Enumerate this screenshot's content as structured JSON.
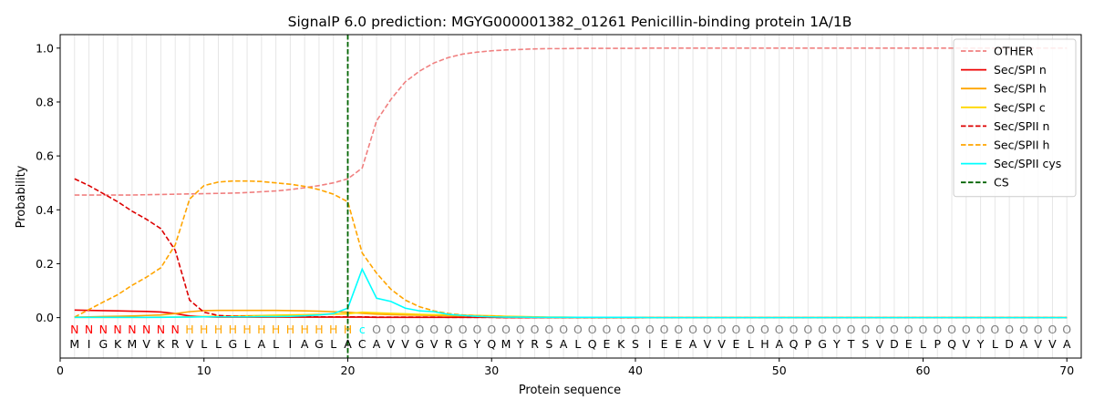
{
  "chart_data": {
    "type": "line",
    "title": "SignalP 6.0 prediction: MGYG000001382_01261 Penicillin-binding protein 1A/1B",
    "xlabel": "Protein sequence",
    "ylabel": "Probability",
    "xlim": [
      0,
      71
    ],
    "ylim": [
      -0.15,
      1.05
    ],
    "xticks": [
      0,
      10,
      20,
      30,
      40,
      50,
      60,
      70
    ],
    "yticks": [
      0.0,
      0.2,
      0.4,
      0.6,
      0.8,
      1.0
    ],
    "grid": "vertical lines at each residue",
    "legend_position": "top-right",
    "sequence": [
      "M",
      "I",
      "G",
      "K",
      "M",
      "V",
      "K",
      "R",
      "V",
      "L",
      "L",
      "G",
      "L",
      "A",
      "L",
      "I",
      "A",
      "G",
      "L",
      "A",
      "C",
      "A",
      "V",
      "V",
      "G",
      "V",
      "R",
      "G",
      "Y",
      "Q",
      "M",
      "Y",
      "R",
      "S",
      "A",
      "L",
      "Q",
      "E",
      "K",
      "S",
      "I",
      "E",
      "E",
      "A",
      "V",
      "V",
      "E",
      "L",
      "H",
      "A",
      "Q",
      "P",
      "G",
      "Y",
      "T",
      "S",
      "V",
      "D",
      "E",
      "L",
      "P",
      "Q",
      "V",
      "Y",
      "L",
      "D",
      "A",
      "V",
      "V",
      "A"
    ],
    "labels": [
      "N",
      "N",
      "N",
      "N",
      "N",
      "N",
      "N",
      "N",
      "H",
      "H",
      "H",
      "H",
      "H",
      "H",
      "H",
      "H",
      "H",
      "H",
      "H",
      "H",
      "c",
      "O",
      "O",
      "O",
      "O",
      "O",
      "O",
      "O",
      "O",
      "O",
      "O",
      "O",
      "O",
      "O",
      "O",
      "O",
      "O",
      "O",
      "O",
      "O",
      "O",
      "O",
      "O",
      "O",
      "O",
      "O",
      "O",
      "O",
      "O",
      "O",
      "O",
      "O",
      "O",
      "O",
      "O",
      "O",
      "O",
      "O",
      "O",
      "O",
      "O",
      "O",
      "O",
      "O",
      "O",
      "O",
      "O",
      "O",
      "O",
      "O"
    ],
    "label_colors": {
      "N": "#ff0000",
      "H": "#ffa500",
      "c": "#00ffff",
      "O": "#808080"
    },
    "cleavage_site": 20,
    "series": [
      {
        "name": "OTHER",
        "color": "#f08080",
        "style": "dashed",
        "values": [
          0.455,
          0.455,
          0.455,
          0.455,
          0.455,
          0.456,
          0.457,
          0.458,
          0.459,
          0.46,
          0.461,
          0.462,
          0.464,
          0.467,
          0.47,
          0.475,
          0.482,
          0.49,
          0.5,
          0.515,
          0.555,
          0.73,
          0.81,
          0.875,
          0.915,
          0.945,
          0.965,
          0.978,
          0.985,
          0.99,
          0.993,
          0.995,
          0.997,
          0.998,
          0.998,
          0.999,
          0.999,
          0.999,
          0.999,
          0.999,
          1.0,
          1.0,
          1.0,
          1.0,
          1.0,
          1.0,
          1.0,
          1.0,
          1.0,
          1.0,
          1.0,
          1.0,
          1.0,
          1.0,
          1.0,
          1.0,
          1.0,
          1.0,
          1.0,
          1.0,
          1.0,
          1.0,
          1.0,
          1.0,
          1.0,
          1.0,
          1.0,
          1.0,
          1.0,
          1.0
        ]
      },
      {
        "name": "Sec/SPI n",
        "color": "#ee0000",
        "style": "solid",
        "values": [
          0.028,
          0.027,
          0.026,
          0.025,
          0.024,
          0.023,
          0.021,
          0.015,
          0.006,
          0.003,
          0.002,
          0.002,
          0.002,
          0.002,
          0.002,
          0.002,
          0.002,
          0.002,
          0.002,
          0.002,
          0.002,
          0.001,
          0.001,
          0.001,
          0.001,
          0.001,
          0.001,
          0.001,
          0.001,
          0.001,
          0.0,
          0.0,
          0.0,
          0.0,
          0.0,
          0.0,
          0.0,
          0.0,
          0.0,
          0.0,
          0.0,
          0.0,
          0.0,
          0.0,
          0.0,
          0.0,
          0.0,
          0.0,
          0.0,
          0.0,
          0.0,
          0.0,
          0.0,
          0.0,
          0.0,
          0.0,
          0.0,
          0.0,
          0.0,
          0.0,
          0.0,
          0.0,
          0.0,
          0.0,
          0.0,
          0.0,
          0.0,
          0.0,
          0.0,
          0.0
        ]
      },
      {
        "name": "Sec/SPI h",
        "color": "#ffa500",
        "style": "solid",
        "values": [
          0.002,
          0.003,
          0.004,
          0.005,
          0.006,
          0.008,
          0.01,
          0.015,
          0.022,
          0.026,
          0.027,
          0.027,
          0.027,
          0.027,
          0.027,
          0.026,
          0.025,
          0.024,
          0.022,
          0.02,
          0.016,
          0.013,
          0.011,
          0.01,
          0.009,
          0.008,
          0.007,
          0.006,
          0.005,
          0.004,
          0.003,
          0.002,
          0.002,
          0.001,
          0.001,
          0.001,
          0.001,
          0.001,
          0.001,
          0.001,
          0.0,
          0.0,
          0.0,
          0.0,
          0.0,
          0.0,
          0.0,
          0.0,
          0.0,
          0.0,
          0.0,
          0.0,
          0.0,
          0.0,
          0.0,
          0.0,
          0.0,
          0.0,
          0.0,
          0.0,
          0.0,
          0.0,
          0.0,
          0.0,
          0.0,
          0.0,
          0.0,
          0.0,
          0.0,
          0.0
        ]
      },
      {
        "name": "Sec/SPI c",
        "color": "#ffd700",
        "style": "solid",
        "values": [
          0.001,
          0.001,
          0.001,
          0.001,
          0.001,
          0.001,
          0.002,
          0.002,
          0.003,
          0.004,
          0.005,
          0.006,
          0.007,
          0.008,
          0.009,
          0.01,
          0.011,
          0.012,
          0.013,
          0.014,
          0.02,
          0.018,
          0.016,
          0.014,
          0.012,
          0.011,
          0.01,
          0.009,
          0.008,
          0.007,
          0.005,
          0.004,
          0.003,
          0.002,
          0.002,
          0.001,
          0.001,
          0.001,
          0.001,
          0.001,
          0.0,
          0.0,
          0.0,
          0.0,
          0.0,
          0.0,
          0.0,
          0.0,
          0.0,
          0.0,
          0.0,
          0.0,
          0.0,
          0.0,
          0.0,
          0.0,
          0.0,
          0.0,
          0.0,
          0.0,
          0.0,
          0.0,
          0.0,
          0.0,
          0.0,
          0.0,
          0.0,
          0.0,
          0.0,
          0.0
        ]
      },
      {
        "name": "Sec/SPII n",
        "color": "#dd0000",
        "style": "dashed",
        "values": [
          0.515,
          0.49,
          0.46,
          0.43,
          0.395,
          0.365,
          0.33,
          0.25,
          0.065,
          0.02,
          0.008,
          0.005,
          0.004,
          0.003,
          0.003,
          0.003,
          0.003,
          0.003,
          0.003,
          0.003,
          0.003,
          0.002,
          0.002,
          0.002,
          0.002,
          0.002,
          0.001,
          0.001,
          0.001,
          0.001,
          0.0,
          0.0,
          0.0,
          0.0,
          0.0,
          0.0,
          0.0,
          0.0,
          0.0,
          0.0,
          0.0,
          0.0,
          0.0,
          0.0,
          0.0,
          0.0,
          0.0,
          0.0,
          0.0,
          0.0,
          0.0,
          0.0,
          0.0,
          0.0,
          0.0,
          0.0,
          0.0,
          0.0,
          0.0,
          0.0,
          0.0,
          0.0,
          0.0,
          0.0,
          0.0,
          0.0,
          0.0,
          0.0,
          0.0,
          0.0
        ]
      },
      {
        "name": "Sec/SPII h",
        "color": "#ffa500",
        "style": "dashed",
        "values": [
          0.002,
          0.03,
          0.058,
          0.085,
          0.12,
          0.15,
          0.185,
          0.27,
          0.44,
          0.49,
          0.503,
          0.507,
          0.507,
          0.505,
          0.5,
          0.495,
          0.487,
          0.475,
          0.458,
          0.43,
          0.24,
          0.165,
          0.105,
          0.065,
          0.04,
          0.025,
          0.015,
          0.01,
          0.007,
          0.005,
          0.003,
          0.002,
          0.002,
          0.001,
          0.001,
          0.001,
          0.001,
          0.001,
          0.001,
          0.001,
          0.0,
          0.0,
          0.0,
          0.0,
          0.0,
          0.0,
          0.0,
          0.0,
          0.0,
          0.0,
          0.0,
          0.0,
          0.0,
          0.0,
          0.0,
          0.0,
          0.0,
          0.0,
          0.0,
          0.0,
          0.0,
          0.0,
          0.0,
          0.0,
          0.0,
          0.0,
          0.0,
          0.0,
          0.0,
          0.0
        ]
      },
      {
        "name": "Sec/SPII cys",
        "color": "#00ffff",
        "style": "solid",
        "values": [
          0.001,
          0.001,
          0.001,
          0.001,
          0.001,
          0.001,
          0.001,
          0.002,
          0.002,
          0.003,
          0.003,
          0.003,
          0.003,
          0.004,
          0.004,
          0.005,
          0.007,
          0.01,
          0.015,
          0.035,
          0.18,
          0.072,
          0.06,
          0.035,
          0.025,
          0.022,
          0.012,
          0.008,
          0.005,
          0.003,
          0.002,
          0.002,
          0.001,
          0.001,
          0.001,
          0.001,
          0.001,
          0.001,
          0.001,
          0.001,
          0.0,
          0.0,
          0.0,
          0.0,
          0.0,
          0.0,
          0.0,
          0.0,
          0.0,
          0.0,
          0.0,
          0.0,
          0.0,
          0.0,
          0.0,
          0.0,
          0.0,
          0.0,
          0.0,
          0.0,
          0.0,
          0.0,
          0.0,
          0.0,
          0.0,
          0.0,
          0.0,
          0.0,
          0.0,
          0.0
        ]
      }
    ],
    "cs_legend": {
      "name": "CS",
      "color": "#006400",
      "style": "dashed"
    }
  }
}
